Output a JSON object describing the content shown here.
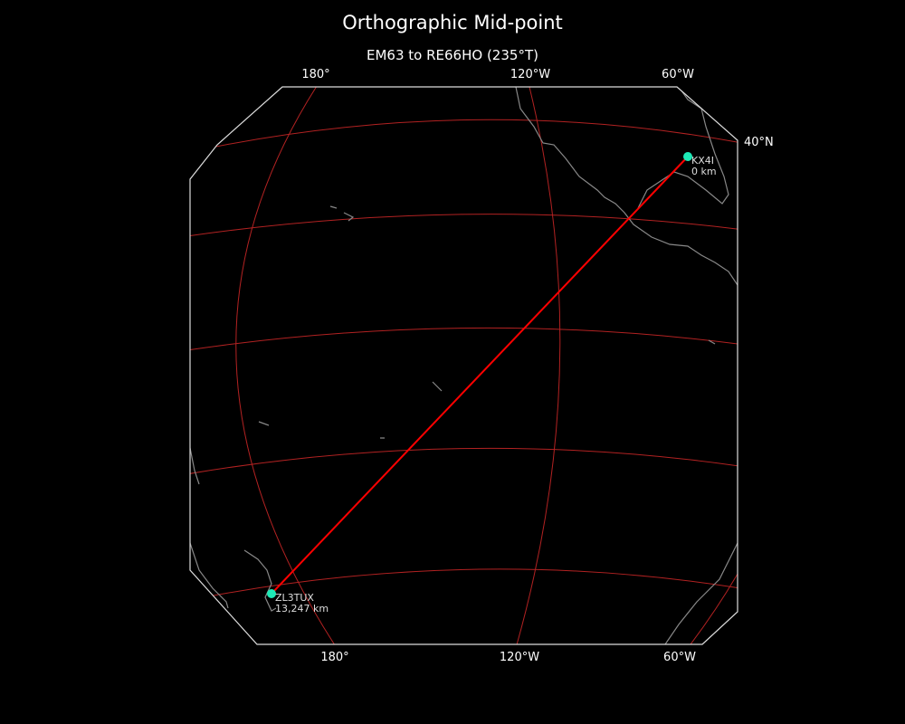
{
  "title": "Orthographic Mid-point",
  "subtitle": "EM63 to RE66HO (235°T)",
  "top_ticks": [
    "180°",
    "120°W",
    "60°W"
  ],
  "bottom_ticks": [
    "180°",
    "120°W",
    "60°W"
  ],
  "right_ticks": [
    "40°N"
  ],
  "stations": [
    {
      "call": "KX4I",
      "distance": "0 km"
    },
    {
      "call": "ZL3TUX",
      "distance": "13,247 km"
    }
  ],
  "colors": {
    "background": "#000000",
    "path": "#ff0000",
    "graticule": "#b22222",
    "coast": "#888888",
    "station": "#1de9b6"
  }
}
